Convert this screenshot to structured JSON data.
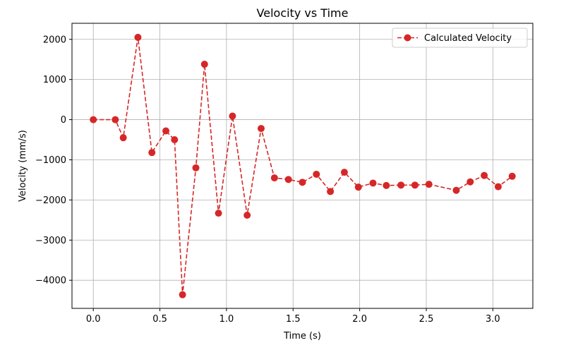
{
  "chart_data": {
    "type": "line",
    "title": "Velocity vs Time",
    "xlabel": "Time (s)",
    "ylabel": "Velocity (mm/s)",
    "xlim": [
      -0.16,
      3.3
    ],
    "ylim": [
      -4700,
      2400
    ],
    "xticks": [
      0.0,
      0.5,
      1.0,
      1.5,
      2.0,
      2.5,
      3.0
    ],
    "xtick_labels": [
      "0.0",
      "0.5",
      "1.0",
      "1.5",
      "2.0",
      "2.5",
      "3.0"
    ],
    "yticks": [
      2000,
      1000,
      0,
      -1000,
      -2000,
      -3000,
      -4000
    ],
    "ytick_labels": [
      "2000",
      "1000",
      "0",
      "−1000",
      "−2000",
      "−3000",
      "−4000"
    ],
    "grid": true,
    "legend_position": "top-right",
    "series": [
      {
        "name": "Calculated Velocity",
        "color": "#d62728",
        "line_style": "dashed",
        "marker": "circle",
        "x": [
          0.0,
          0.165,
          0.225,
          0.335,
          0.44,
          0.545,
          0.61,
          0.67,
          0.77,
          0.835,
          0.94,
          1.045,
          1.155,
          1.26,
          1.36,
          1.465,
          1.57,
          1.675,
          1.78,
          1.885,
          1.99,
          2.1,
          2.2,
          2.31,
          2.415,
          2.52,
          2.725,
          2.83,
          2.935,
          3.04,
          3.145
        ],
        "y": [
          0,
          0,
          -450,
          2050,
          -820,
          -280,
          -500,
          -4360,
          -1200,
          1380,
          -2330,
          90,
          -2380,
          -220,
          -1450,
          -1490,
          -1560,
          -1360,
          -1790,
          -1310,
          -1680,
          -1580,
          -1640,
          -1630,
          -1630,
          -1610,
          -1760,
          -1550,
          -1390,
          -1670,
          -1410
        ]
      }
    ]
  }
}
